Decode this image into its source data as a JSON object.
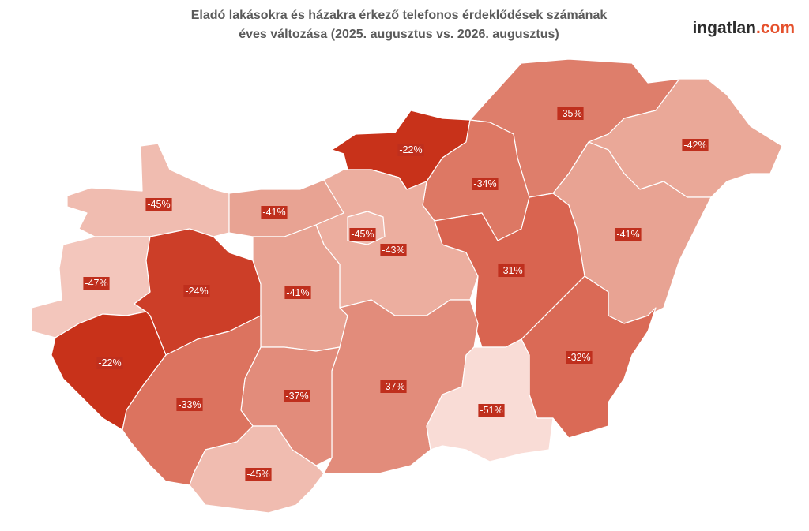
{
  "header": {
    "title_line1": "Eladó lakásokra és házakra érkező telefonos érdeklődések számának",
    "title_line2": "éves változása (2025. augusztus vs. 2026. augusztus)"
  },
  "logo": {
    "name": "ingatlan",
    "suffix": ".com"
  },
  "regions": [
    {
      "value": -45,
      "label": "-45%",
      "color": "#f0bcb0"
    },
    {
      "value": -41,
      "label": "-41%",
      "color": "#e8a393"
    },
    {
      "value": -22,
      "label": "-22%",
      "color": "#c8321a"
    },
    {
      "value": -35,
      "label": "-35%",
      "color": "#de7e6b"
    },
    {
      "value": -42,
      "label": "-42%",
      "color": "#eaa898"
    },
    {
      "value": -34,
      "label": "-34%",
      "color": "#dd7864"
    },
    {
      "value": -43,
      "label": "-43%",
      "color": "#ecae9f"
    },
    {
      "value": -45,
      "label": "-45%",
      "color": "#f0bcb0"
    },
    {
      "value": -41,
      "label": "-41%",
      "color": "#e8a393"
    },
    {
      "value": -47,
      "label": "-47%",
      "color": "#f3c6bc"
    },
    {
      "value": -24,
      "label": "-24%",
      "color": "#cc3e28"
    },
    {
      "value": -41,
      "label": "-41%",
      "color": "#e8a393"
    },
    {
      "value": -31,
      "label": "-31%",
      "color": "#d96450"
    },
    {
      "value": -22,
      "label": "-22%",
      "color": "#c8321a"
    },
    {
      "value": -32,
      "label": "-32%",
      "color": "#da6a56"
    },
    {
      "value": -37,
      "label": "-37%",
      "color": "#e28c7b"
    },
    {
      "value": -37,
      "label": "-37%",
      "color": "#e28c7b"
    },
    {
      "value": -33,
      "label": "-33%",
      "color": "#dc735f"
    },
    {
      "value": -51,
      "label": "-51%",
      "color": "#f9dcd6"
    },
    {
      "value": -45,
      "label": "-45%",
      "color": "#f0bcb0"
    }
  ]
}
